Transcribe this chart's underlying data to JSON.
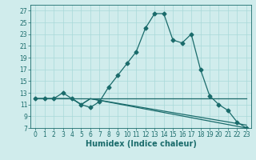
{
  "xlabel": "Humidex (Indice chaleur)",
  "ylabel": "",
  "bg_color": "#d0ecec",
  "line_color": "#1a6b6b",
  "xlim": [
    -0.5,
    23.5
  ],
  "ylim": [
    7,
    28
  ],
  "yticks": [
    7,
    9,
    11,
    13,
    15,
    17,
    19,
    21,
    23,
    25,
    27
  ],
  "xticks": [
    0,
    1,
    2,
    3,
    4,
    5,
    6,
    7,
    8,
    9,
    10,
    11,
    12,
    13,
    14,
    15,
    16,
    17,
    18,
    19,
    20,
    21,
    22,
    23
  ],
  "line1_x": [
    0,
    1,
    2,
    3,
    4,
    5,
    6,
    7,
    8,
    9,
    10,
    11,
    12,
    13,
    14,
    15,
    16,
    17,
    18,
    19,
    20,
    21,
    22,
    23
  ],
  "line1_y": [
    12,
    12,
    12,
    13,
    12,
    11,
    10.5,
    11.5,
    14,
    16,
    18,
    20,
    24,
    26.5,
    26.5,
    22,
    21.5,
    23,
    17,
    12.5,
    11,
    10,
    8,
    7
  ],
  "line2_x": [
    0,
    3,
    4,
    5,
    6,
    23
  ],
  "line2_y": [
    12,
    12,
    12,
    11,
    12,
    7
  ],
  "line3_x": [
    0,
    3,
    4,
    5,
    6,
    23
  ],
  "line3_y": [
    12,
    12,
    12,
    11,
    12,
    7.5
  ],
  "line4_x": [
    0,
    23
  ],
  "line4_y": [
    12,
    12
  ],
  "marker": "D",
  "markersize": 2.5,
  "linewidth": 0.9,
  "grid_color": "#a8d8d8",
  "tick_fontsize": 5.5,
  "xlabel_fontsize": 7
}
